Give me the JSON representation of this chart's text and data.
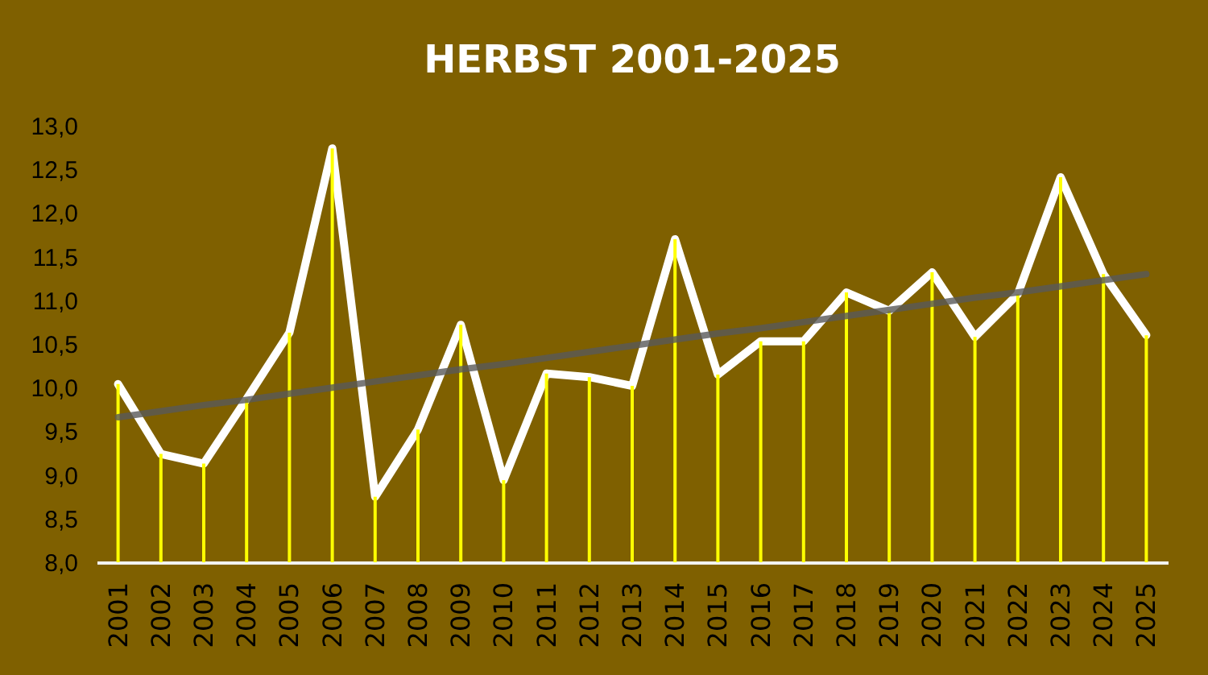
{
  "chart_data": {
    "type": "line",
    "title": "HERBST 2001-2025",
    "categories": [
      "2001",
      "2002",
      "2003",
      "2004",
      "2005",
      "2006",
      "2007",
      "2008",
      "2009",
      "2010",
      "2011",
      "2012",
      "2013",
      "2014",
      "2015",
      "2016",
      "2017",
      "2018",
      "2019",
      "2020",
      "2021",
      "2022",
      "2023",
      "2024",
      "2025"
    ],
    "series": [
      {
        "color": "#ffffff",
        "values": [
          10.04,
          9.24,
          9.13,
          9.87,
          10.63,
          12.74,
          8.75,
          9.52,
          10.72,
          8.94,
          10.16,
          10.12,
          10.02,
          11.7,
          10.15,
          10.53,
          10.53,
          11.09,
          10.88,
          11.32,
          10.58,
          11.07,
          12.41,
          11.3,
          10.6
        ]
      },
      {
        "type": "bar",
        "color": "#ffff00",
        "values": [
          10.04,
          9.24,
          9.13,
          9.87,
          10.63,
          12.74,
          8.75,
          9.52,
          10.72,
          8.94,
          10.16,
          10.12,
          10.02,
          11.7,
          10.15,
          10.53,
          10.53,
          11.09,
          10.88,
          11.32,
          10.58,
          11.07,
          12.41,
          11.3,
          10.6
        ]
      },
      {
        "type": "line",
        "color": "#595959",
        "values": [
          9.66,
          9.73,
          9.8,
          9.86,
          9.93,
          10.0,
          10.07,
          10.14,
          10.21,
          10.27,
          10.34,
          10.41,
          10.48,
          10.55,
          10.62,
          10.68,
          10.75,
          10.82,
          10.89,
          10.96,
          11.03,
          11.09,
          11.16,
          11.23,
          11.3
        ]
      }
    ],
    "ylim": [
      8,
      13
    ],
    "yticks": [
      {
        "value": 8,
        "label": "8,0"
      },
      {
        "value": 8.5,
        "label": "8,5"
      },
      {
        "value": 9,
        "label": "9,0"
      },
      {
        "value": 9.5,
        "label": "9,5"
      },
      {
        "value": 10,
        "label": "10,0"
      },
      {
        "value": 10.5,
        "label": "10,5"
      },
      {
        "value": 11,
        "label": "11,0"
      },
      {
        "value": 11.5,
        "label": "11,5"
      },
      {
        "value": 12,
        "label": "12,0"
      },
      {
        "value": 12.5,
        "label": "12,5"
      },
      {
        "value": 13,
        "label": "13,0"
      }
    ],
    "line_style": "solid"
  }
}
